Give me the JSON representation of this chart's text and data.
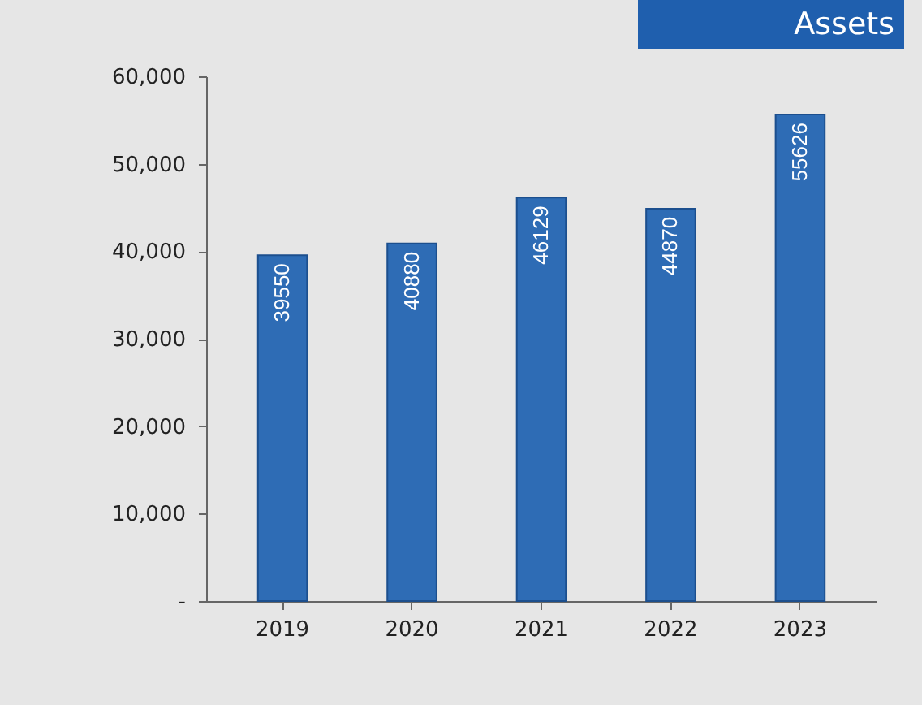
{
  "chart_data": {
    "type": "bar",
    "title": "Assets",
    "categories": [
      "2019",
      "2020",
      "2021",
      "2022",
      "2023"
    ],
    "values": [
      39550,
      40880,
      46129,
      44870,
      55626
    ],
    "color": "#2e6cb5",
    "data_labels": true,
    "ylim": [
      0,
      60000
    ],
    "yticks": [
      {
        "value": 0,
        "label": "-"
      },
      {
        "value": 10000,
        "label": "10,000"
      },
      {
        "value": 20000,
        "label": "20,000"
      },
      {
        "value": 30000,
        "label": "30,000"
      },
      {
        "value": 40000,
        "label": "40,000"
      },
      {
        "value": 50000,
        "label": "50,000"
      },
      {
        "value": 60000,
        "label": "60,000"
      }
    ],
    "grid": false
  }
}
